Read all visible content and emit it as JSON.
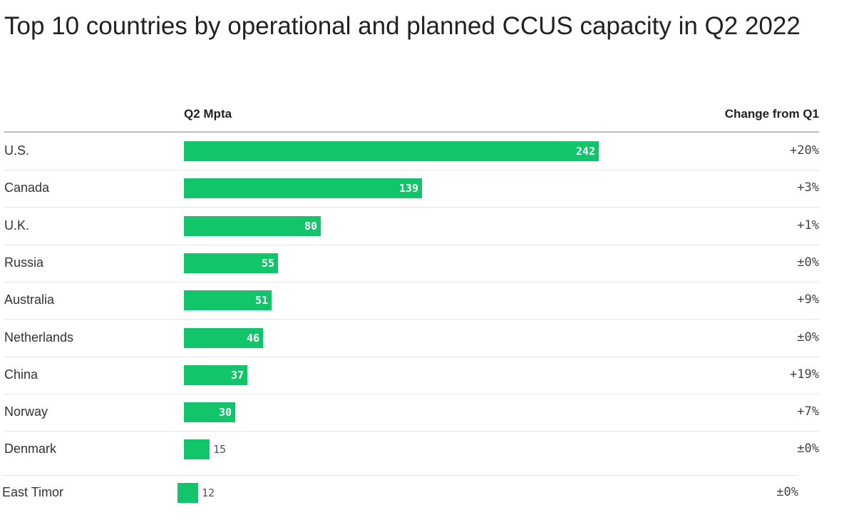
{
  "chart_data": {
    "type": "bar",
    "title": "Top 10 countries by operational and planned CCUS capacity in Q2 2022",
    "value_column_label": "Q2 Mpta",
    "change_column_label": "Change from Q1",
    "bar_color": "#12c46a",
    "categories": [
      "U.S.",
      "Canada",
      "U.K.",
      "Russia",
      "Australia",
      "Netherlands",
      "China",
      "Norway",
      "Denmark",
      "East Timor"
    ],
    "values": [
      242,
      139,
      80,
      55,
      51,
      46,
      37,
      30,
      15,
      12
    ],
    "changes": [
      "+20%",
      "+3%",
      "+1%",
      "±0%",
      "+9%",
      "±0%",
      "+19%",
      "+7%",
      "±0%",
      "±0%"
    ],
    "xlim": [
      0,
      242
    ]
  }
}
